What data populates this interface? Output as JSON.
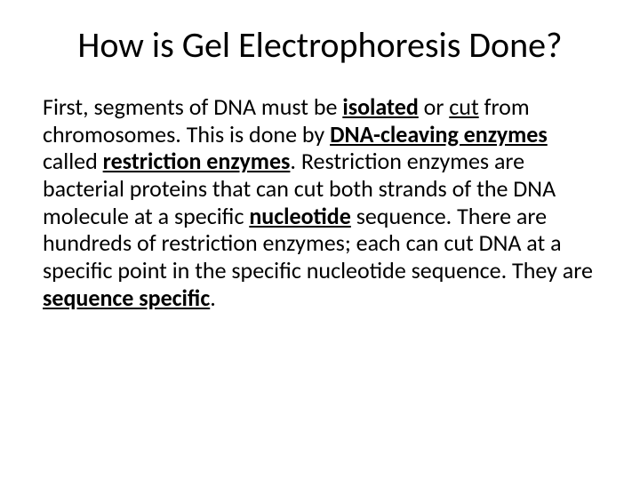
{
  "background_color": "#ffffff",
  "text_color": "#000000",
  "title": {
    "text": "How is Gel Electrophoresis Done?",
    "fontsize": 40,
    "weight": 400,
    "align": "center"
  },
  "body": {
    "fontsize": 26,
    "line_height": 1.18,
    "runs": [
      {
        "t": "First, segments of DNA must be "
      },
      {
        "t": "isolated",
        "bold": true,
        "underline": true
      },
      {
        "t": " or "
      },
      {
        "t": "cut",
        "underline": true
      },
      {
        "t": " from chromosomes. This is done by "
      },
      {
        "t": "DNA-cleaving enzymes",
        "bold": true,
        "underline": true
      },
      {
        "t": " called "
      },
      {
        "t": "restriction enzymes",
        "bold": true,
        "underline": true
      },
      {
        "t": ". Restriction enzymes are bacterial proteins that can cut both strands of the DNA molecule at a specific "
      },
      {
        "t": "nucleotide",
        "bold": true,
        "underline": true
      },
      {
        "t": " sequence.  There are hundreds of restriction enzymes; each can cut DNA at a specific point in the specific nucleotide sequence. They are "
      },
      {
        "t": "sequence specific",
        "bold": true,
        "underline": true
      },
      {
        "t": "."
      }
    ]
  }
}
